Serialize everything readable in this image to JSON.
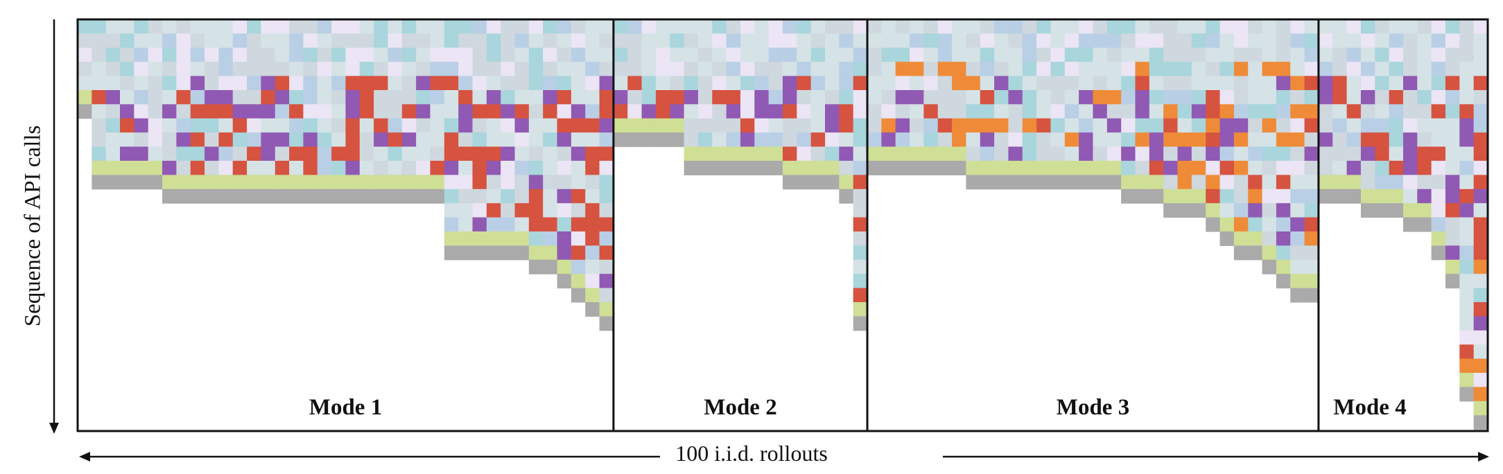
{
  "chart_data": {
    "type": "heatmap",
    "ylabel": "Sequence of API calls",
    "xlabel": "100 i.i.d. rollouts",
    "modes": [
      {
        "label": "Mode 1",
        "rollouts": 38
      },
      {
        "label": "Mode 2",
        "rollouts": 18
      },
      {
        "label": "Mode 3",
        "rollouts": 32
      },
      {
        "label": "Mode 4",
        "rollouts": 12
      }
    ],
    "total_rollouts": 100,
    "call_colors": {
      "red": "#d65340",
      "purple": "#9059b3",
      "orange": "#ef8b38",
      "green": "#cfdf96",
      "gray": "#aaaaaa",
      "light_blue": "#a9d5dc",
      "steel_blue": "#b9cfe6",
      "lavender": "#ebe5f5",
      "pale": "#d5e3e6",
      "pale_gray": "#cfd8de"
    },
    "frame_color": "#111111"
  }
}
